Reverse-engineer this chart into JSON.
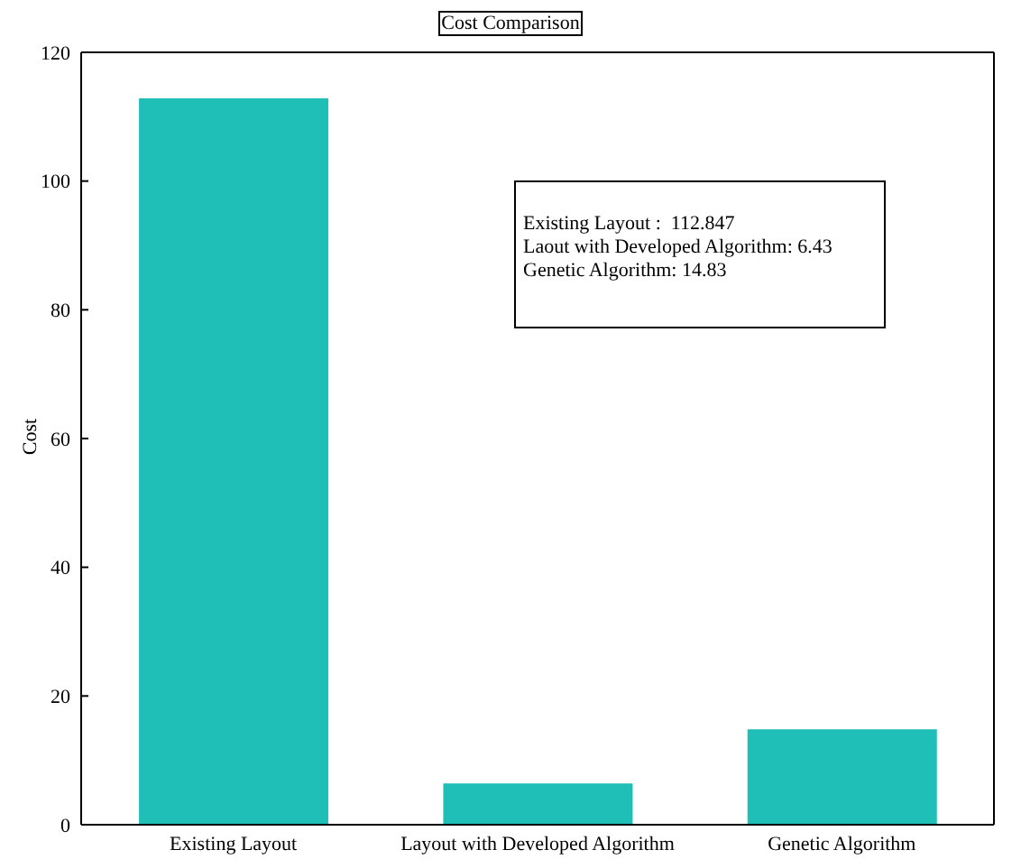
{
  "chart_data": {
    "type": "bar",
    "title": "Cost Comparison",
    "ylabel": "Cost",
    "categories": [
      "Existing Layout",
      "Layout with Developed Algorithm",
      "Genetic Algorithm"
    ],
    "values": [
      112.847,
      6.43,
      14.83
    ],
    "color": "#1fbfb8",
    "ylim": [
      0,
      120
    ],
    "yticks": [
      0,
      20,
      40,
      60,
      80,
      100,
      120
    ],
    "grid": false,
    "legend": false,
    "annotations": [
      "Existing Layout :  112.847",
      "Laout with Developed Algorithm: 6.43",
      "Genetic Algorithm: 14.83"
    ]
  }
}
